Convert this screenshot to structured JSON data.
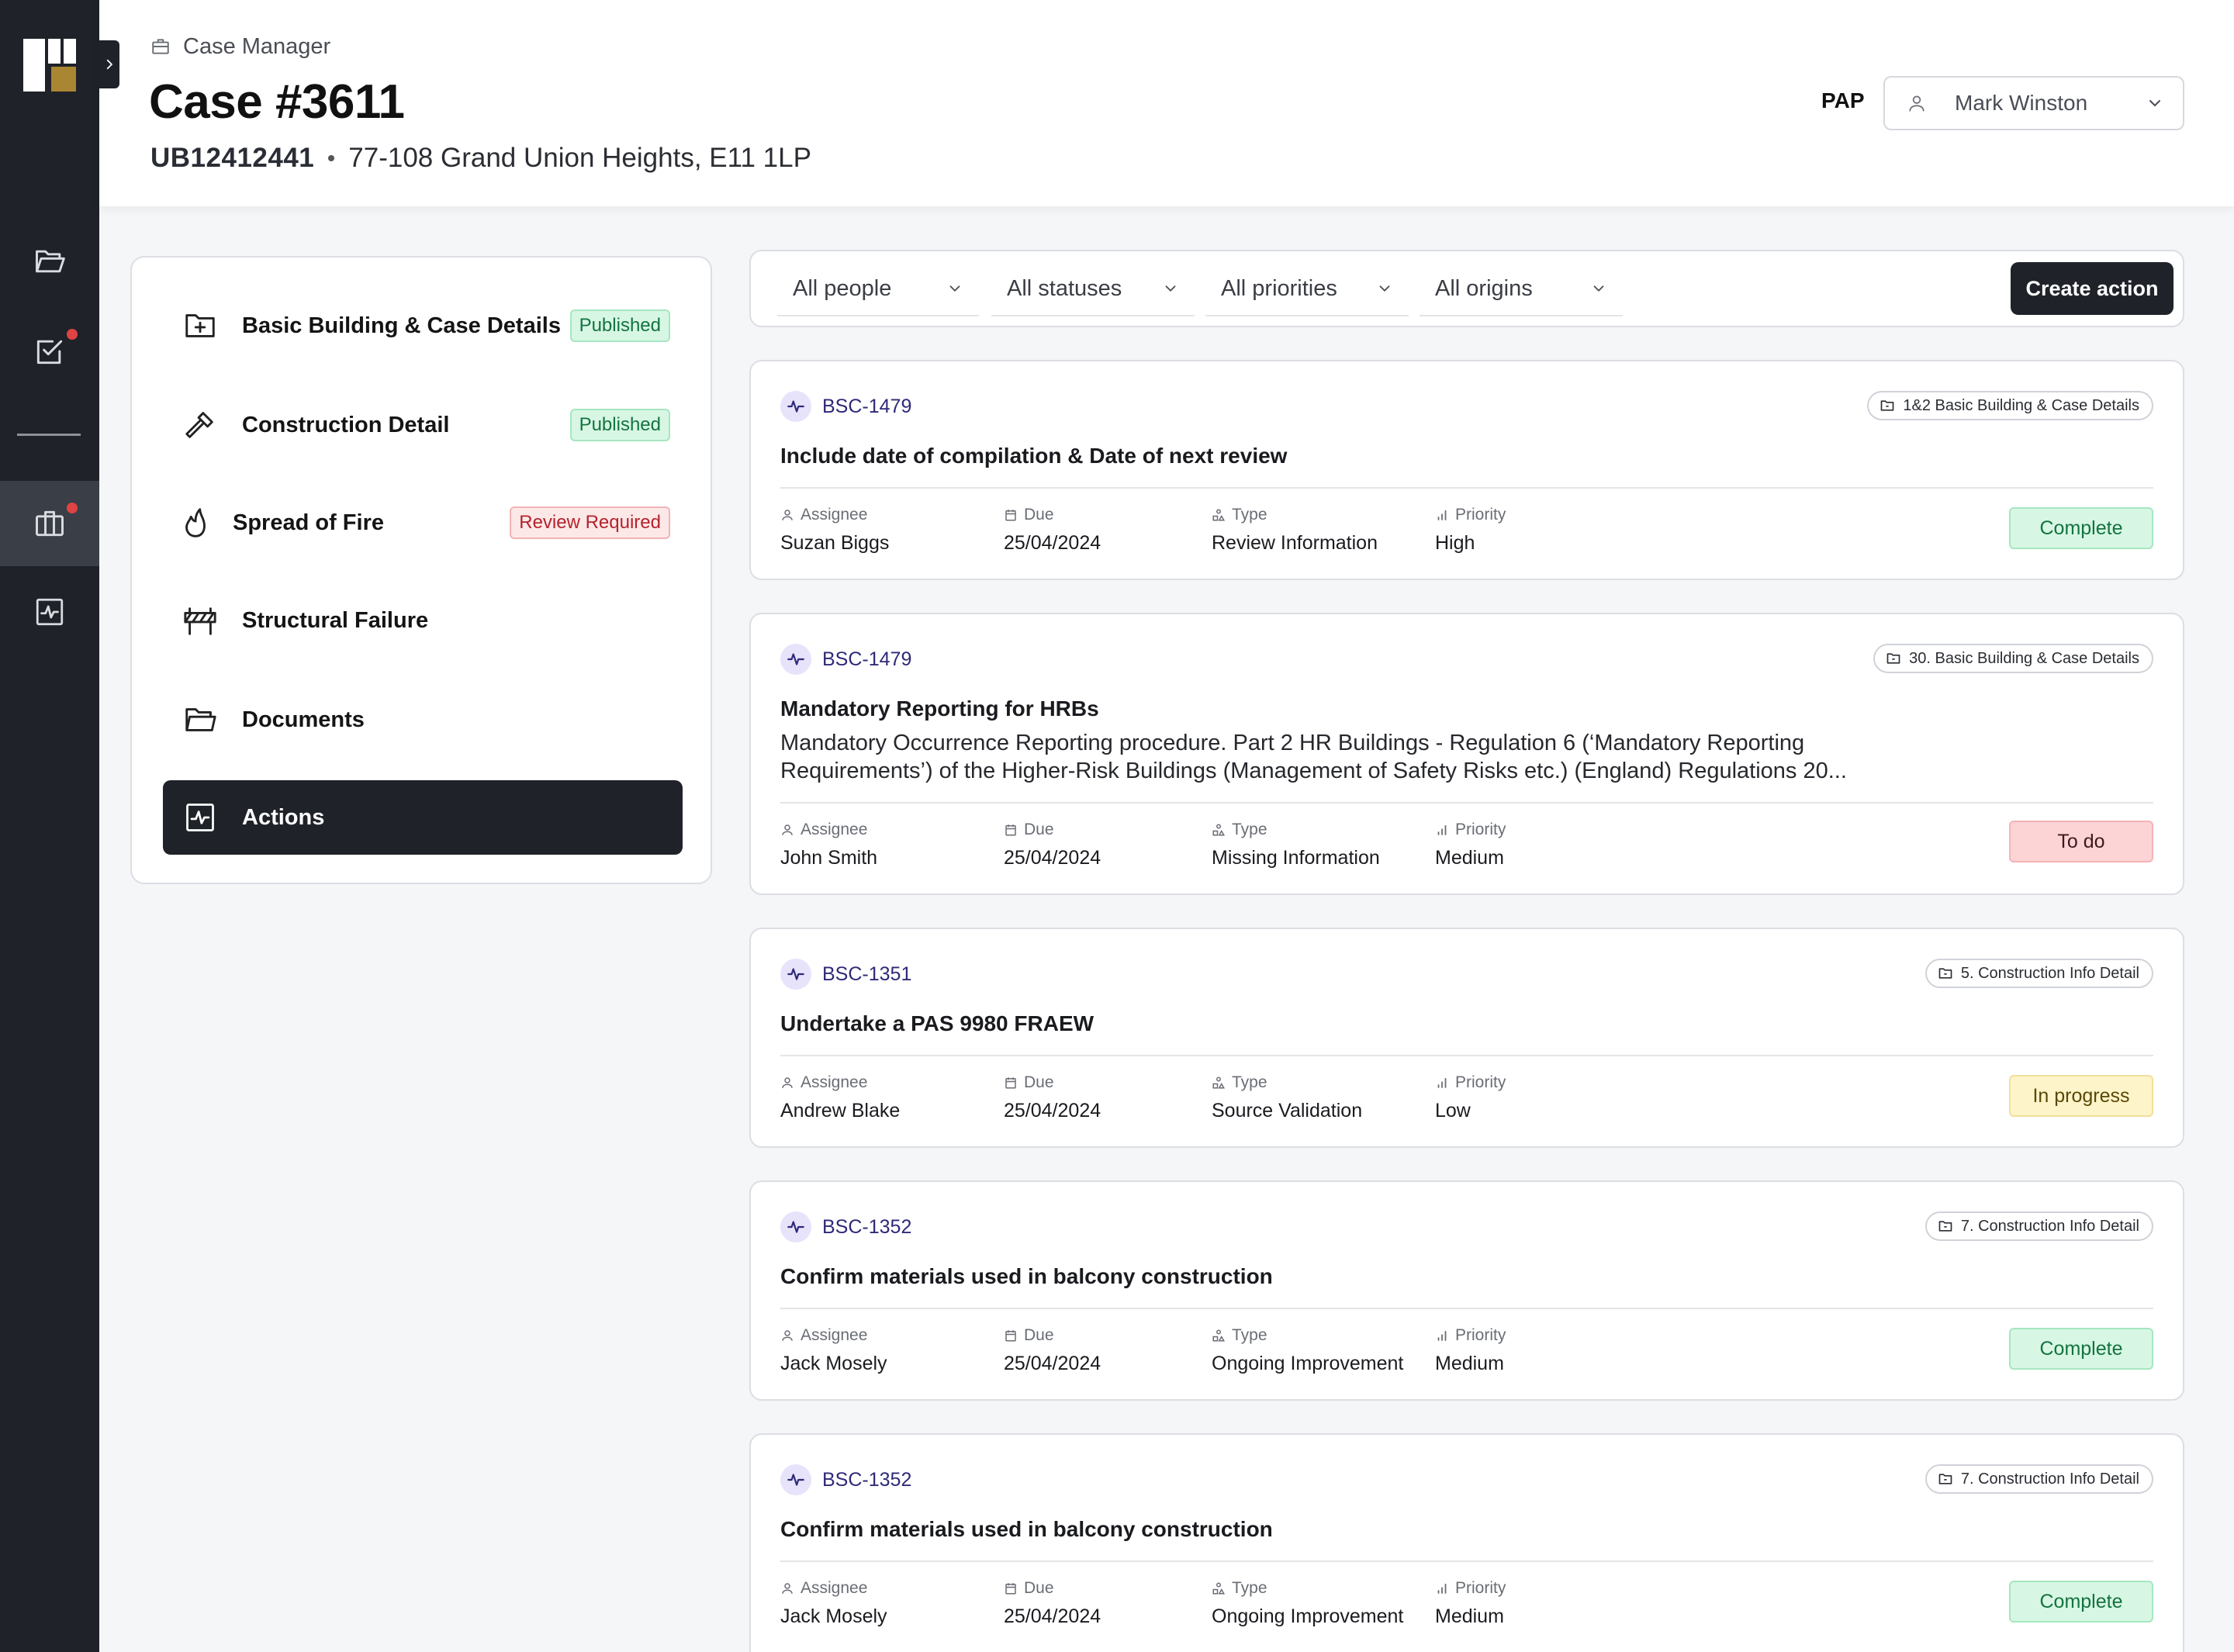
{
  "header": {
    "breadcrumb": "Case Manager",
    "title": "Case #3611",
    "reference": "UB12412441",
    "address": "77-108 Grand Union Heights, E11 1LP",
    "pap_label": "PAP",
    "pap_value": "Mark Winston"
  },
  "rail": {
    "items": [
      {
        "icon": "folder-open-icon",
        "notification": false
      },
      {
        "icon": "checkbox-icon",
        "notification": true
      },
      {
        "icon": "briefcase-icon",
        "notification": true,
        "active": true
      },
      {
        "icon": "activity-icon",
        "notification": false
      }
    ]
  },
  "sections": [
    {
      "label": "Basic Building & Case Details",
      "badge": "Published",
      "icon": "folder-plus-icon"
    },
    {
      "label": "Construction Detail",
      "badge": "Published",
      "icon": "hammer-icon"
    },
    {
      "label": "Spread of Fire",
      "badge": "Review Required",
      "icon": "flame-icon"
    },
    {
      "label": "Structural Failure",
      "badge": "",
      "icon": "barrier-icon"
    },
    {
      "label": "Documents",
      "badge": "",
      "icon": "folder-icon"
    },
    {
      "label": "Actions",
      "badge": "",
      "icon": "activity-icon",
      "active": true
    }
  ],
  "filters": {
    "people": "All people",
    "statuses": "All statuses",
    "priorities": "All priorities",
    "origins": "All origins",
    "create_label": "Create action"
  },
  "meta_labels": {
    "assignee": "Assignee",
    "due": "Due",
    "type": "Type",
    "priority": "Priority"
  },
  "actions": [
    {
      "id": "BSC-1479",
      "tag": "1&2 Basic Building & Case Details",
      "title": "Include date of compilation & Date of next review",
      "description": "",
      "assignee": "Suzan Biggs",
      "due": "25/04/2024",
      "type": "Review Information",
      "priority": "High",
      "status": "Complete"
    },
    {
      "id": "BSC-1479",
      "tag": "30. Basic Building & Case Details",
      "title": "Mandatory Reporting for HRBs",
      "description": "Mandatory Occurrence Reporting procedure. Part 2 HR Buildings - Regulation 6 (‘Mandatory Reporting Requirements’) of the Higher-Risk Buildings (Management of Safety Risks etc.) (England) Regulations 20...",
      "assignee": "John Smith",
      "due": "25/04/2024",
      "type": "Missing Information",
      "priority": "Medium",
      "status": "To do"
    },
    {
      "id": "BSC-1351",
      "tag": "5. Construction Info Detail",
      "title": "Undertake a PAS 9980 FRAEW",
      "description": "",
      "assignee": "Andrew Blake",
      "due": "25/04/2024",
      "type": "Source Validation",
      "priority": "Low",
      "status": "In progress"
    },
    {
      "id": "BSC-1352",
      "tag": "7. Construction Info Detail",
      "title": "Confirm materials used in balcony construction",
      "description": "",
      "assignee": "Jack Mosely",
      "due": "25/04/2024",
      "type": "Ongoing Improvement",
      "priority": "Medium",
      "status": "Complete"
    },
    {
      "id": "BSC-1352",
      "tag": "7. Construction Info Detail",
      "title": "Confirm materials used in balcony construction",
      "description": "",
      "assignee": "Jack Mosely",
      "due": "25/04/2024",
      "type": "Ongoing Improvement",
      "priority": "Medium",
      "status": "Complete"
    }
  ],
  "colors": {
    "rail": "#1f2228",
    "accent_dark": "#1f2228",
    "status_complete": "#d7f7e4",
    "status_todo": "#fdd4d6",
    "status_in_progress": "#fdf4c9",
    "id_purple": "#2e2a78",
    "logo_gold": "#a88632"
  }
}
